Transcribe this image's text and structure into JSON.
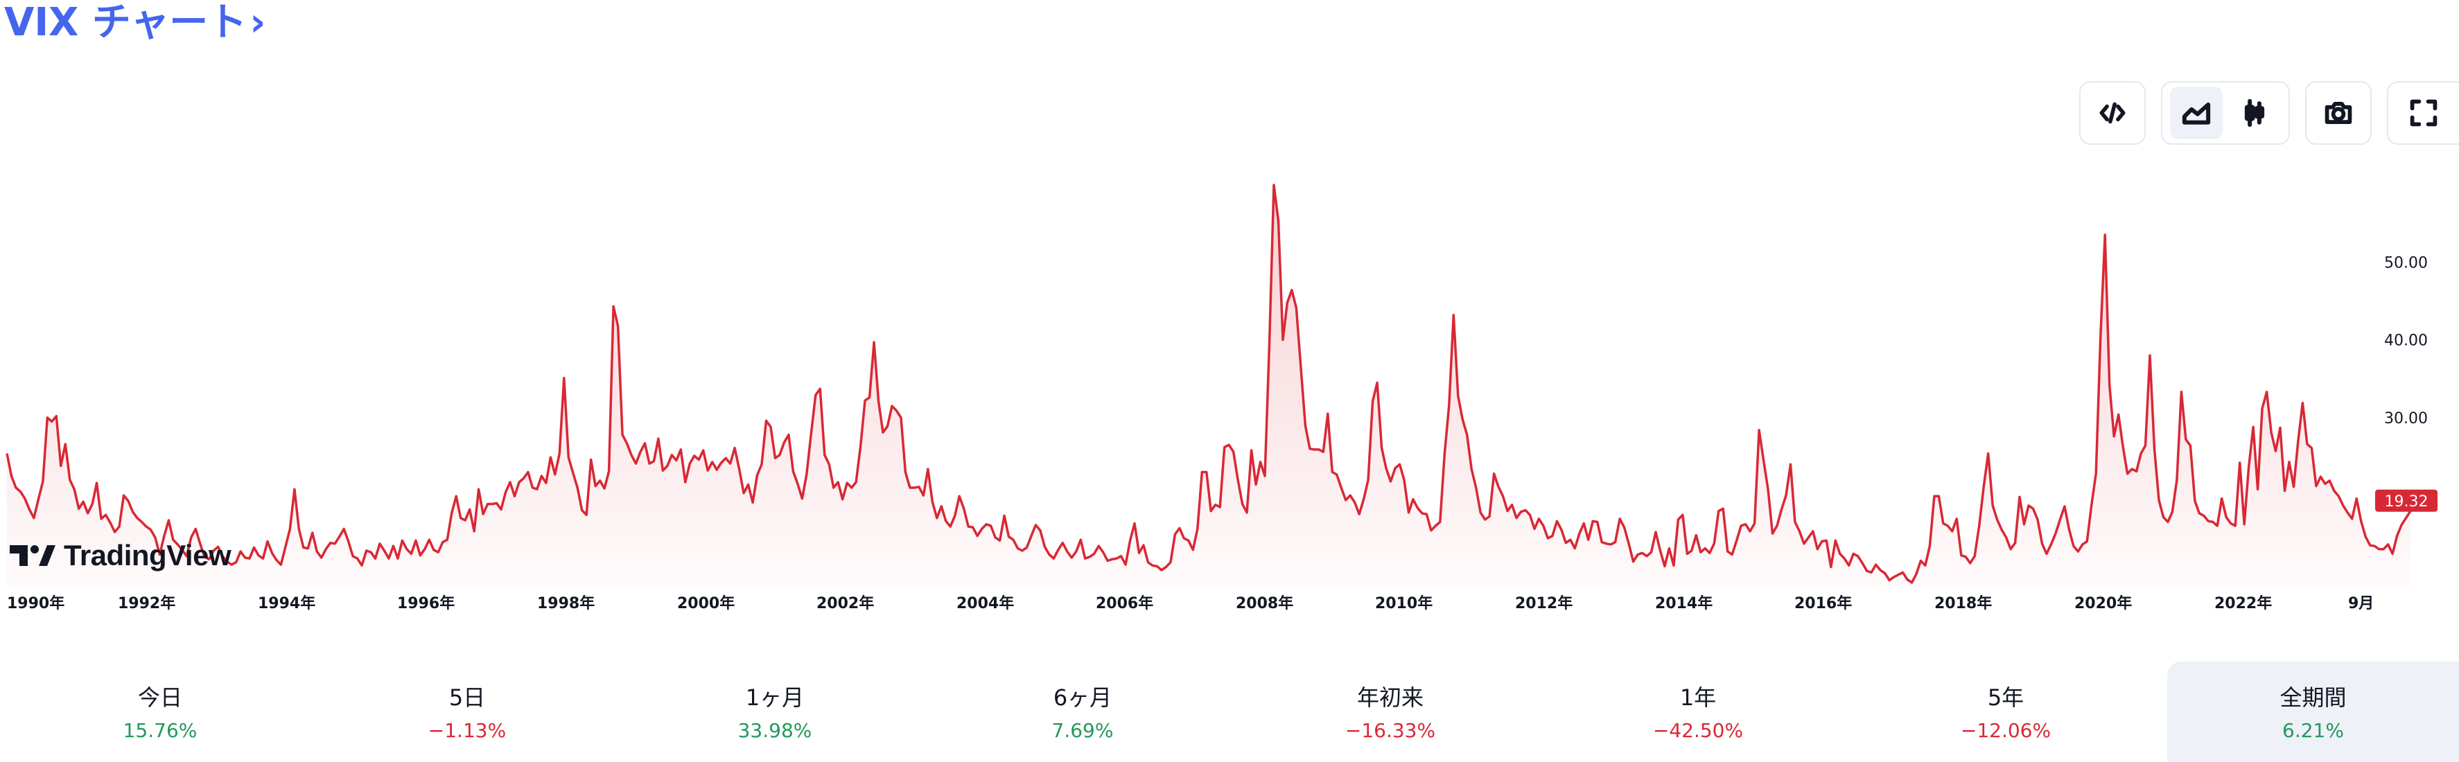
{
  "title": "VIX チャート",
  "title_chevron": "›",
  "toolbar": {
    "embed": "code-icon",
    "area": "area-chart-icon",
    "candle": "candlestick-icon",
    "snapshot": "camera-icon",
    "fullscreen": "fullscreen-icon",
    "active": "area"
  },
  "watermark": "TradingView",
  "colors": {
    "line": "#d92835",
    "positive": "#22995b",
    "negative": "#d92835",
    "link": "#4466ee"
  },
  "chart_data": {
    "type": "area",
    "title": "",
    "xlabel": "",
    "ylabel": "",
    "x_ticks": [
      "1990年",
      "1992年",
      "1994年",
      "1996年",
      "1998年",
      "2000年",
      "2002年",
      "2004年",
      "2006年",
      "2008年",
      "2010年",
      "2012年",
      "2014年",
      "2016年",
      "2018年",
      "2020年",
      "2022年",
      "9月"
    ],
    "y_ticks": [
      "30.00",
      "40.00",
      "50.00"
    ],
    "ylim": [
      5,
      60
    ],
    "x_start": 1990.0,
    "x_step": 0.0833,
    "last_value": "19.32",
    "grid": false,
    "values": [
      25.4,
      22.5,
      21.0,
      20.5,
      19.6,
      18.2,
      17.1,
      19.5,
      21.8,
      30.0,
      29.5,
      30.2,
      23.8,
      26.6,
      22.0,
      20.8,
      18.3,
      19.2,
      17.7,
      18.9,
      21.6,
      17.0,
      17.5,
      16.5,
      15.3,
      16.0,
      20.0,
      19.3,
      17.9,
      17.1,
      16.6,
      16.0,
      15.6,
      14.6,
      12.4,
      14.8,
      16.8,
      14.3,
      13.7,
      13.0,
      12.2,
      14.6,
      15.7,
      13.8,
      12.1,
      11.8,
      12.9,
      13.4,
      12.2,
      11.5,
      11.1,
      11.4,
      12.8,
      12.0,
      11.9,
      13.3,
      12.3,
      11.9,
      14.1,
      12.6,
      11.7,
      11.1,
      13.4,
      15.7,
      20.8,
      15.7,
      13.3,
      13.2,
      15.2,
      12.8,
      12.0,
      13.1,
      13.9,
      13.8,
      14.7,
      15.7,
      14.1,
      12.2,
      11.9,
      11.0,
      12.9,
      12.7,
      11.9,
      13.8,
      12.9,
      11.9,
      13.5,
      11.9,
      14.2,
      13.1,
      12.5,
      14.2,
      12.3,
      13.1,
      14.3,
      13.0,
      12.7,
      14.0,
      14.3,
      17.7,
      19.9,
      17.1,
      16.8,
      18.2,
      15.4,
      20.8,
      17.6,
      18.9,
      18.9,
      19.0,
      18.2,
      20.4,
      21.7,
      19.9,
      21.7,
      22.2,
      23.0,
      21.0,
      20.8,
      22.5,
      21.6,
      24.9,
      22.7,
      25.4,
      35.1,
      24.9,
      22.9,
      21.0,
      18.1,
      17.5,
      24.6,
      21.2,
      21.9,
      20.9,
      23.1,
      44.3,
      41.8,
      27.8,
      26.7,
      25.2,
      24.1,
      25.6,
      26.7,
      24.1,
      24.4,
      27.3,
      23.2,
      23.8,
      25.2,
      24.5,
      25.9,
      21.7,
      24.1,
      25.1,
      24.6,
      25.8,
      23.2,
      24.3,
      23.3,
      24.2,
      24.8,
      24.1,
      26.1,
      23.4,
      20.3,
      21.4,
      19.1,
      22.6,
      24.0,
      29.6,
      28.8,
      24.8,
      25.2,
      26.8,
      27.8,
      23.1,
      21.5,
      19.6,
      22.7,
      27.9,
      32.9,
      33.7,
      25.2,
      24.0,
      21.0,
      21.7,
      19.5,
      21.6,
      21.0,
      21.7,
      26.3,
      32.2,
      32.6,
      39.7,
      32.1,
      28.1,
      28.9,
      31.5,
      30.9,
      30.0,
      23.0,
      21.0,
      21.0,
      21.1,
      20.0,
      23.4,
      19.2,
      17.1,
      18.6,
      16.7,
      16.0,
      17.4,
      19.9,
      18.3,
      16.0,
      15.9,
      14.8,
      15.7,
      16.3,
      16.1,
      14.6,
      14.2,
      17.4,
      14.7,
      14.3,
      13.2,
      12.9,
      13.3,
      14.8,
      16.2,
      15.5,
      13.4,
      12.4,
      11.9,
      13.0,
      13.9,
      12.8,
      12.0,
      12.8,
      14.3,
      11.9,
      12.1,
      12.5,
      13.5,
      12.7,
      11.6,
      11.8,
      11.9,
      12.2,
      11.1,
      14.2,
      16.4,
      12.6,
      13.6,
      11.4,
      11.0,
      10.9,
      10.4,
      10.8,
      11.4,
      15.0,
      15.8,
      14.5,
      14.2,
      13.0,
      15.7,
      23.0,
      23.0,
      18.0,
      18.8,
      18.5,
      26.2,
      26.5,
      25.6,
      22.0,
      18.9,
      17.8,
      25.8,
      21.4,
      24.3,
      22.5,
      39.4,
      59.9,
      55.3,
      40.0,
      44.8,
      46.4,
      44.1,
      36.5,
      29.0,
      26.0,
      25.9,
      25.9,
      25.6,
      30.5,
      23.0,
      22.7,
      21.0,
      19.4,
      20.0,
      19.1,
      17.6,
      19.5,
      22.0,
      32.1,
      34.5,
      26.1,
      23.5,
      21.8,
      23.5,
      24.0,
      22.0,
      17.8,
      19.5,
      18.4,
      17.7,
      17.6,
      15.5,
      16.1,
      16.6,
      25.3,
      31.6,
      43.2,
      32.8,
      29.8,
      27.8,
      23.4,
      21.0,
      17.8,
      16.9,
      17.3,
      22.8,
      21.1,
      19.9,
      18.0,
      18.8,
      17.1,
      17.9,
      18.1,
      17.5,
      15.7,
      17.0,
      16.1,
      14.5,
      14.8,
      16.7,
      15.6,
      13.9,
      14.3,
      13.2,
      15.1,
      16.4,
      14.3,
      16.7,
      16.6,
      14.0,
      13.8,
      13.7,
      14.0,
      17.0,
      15.9,
      13.8,
      11.5,
      12.4,
      12.6,
      12.2,
      12.7,
      15.3,
      12.9,
      10.9,
      13.2,
      11.0,
      16.9,
      17.5,
      12.5,
      12.9,
      14.9,
      12.7,
      13.2,
      12.6,
      13.8,
      18.0,
      18.3,
      12.8,
      12.4,
      14.2,
      16.1,
      16.3,
      15.4,
      16.4,
      28.4,
      24.5,
      20.8,
      15.1,
      16.1,
      18.2,
      20.0,
      24.0,
      16.6,
      15.4,
      13.8,
      14.6,
      15.4,
      13.1,
      14.1,
      14.2,
      10.8,
      14.2,
      12.5,
      11.9,
      11.0,
      12.5,
      12.2,
      11.3,
      10.3,
      10.1,
      11.1,
      10.4,
      10.0,
      9.1,
      9.5,
      9.8,
      10.1,
      9.2,
      8.8,
      9.9,
      11.6,
      11.0,
      13.5,
      19.9,
      19.9,
      16.4,
      16.1,
      15.4,
      17.0,
      12.3,
      12.1,
      11.3,
      12.2,
      16.1,
      21.1,
      25.4,
      18.7,
      16.9,
      15.6,
      14.6,
      13.1,
      13.9,
      19.8,
      16.3,
      18.7,
      18.3,
      16.9,
      13.8,
      12.5,
      13.7,
      15.1,
      16.9,
      18.6,
      15.7,
      13.5,
      12.8,
      13.7,
      14.1,
      18.8,
      22.8,
      40.3,
      53.5,
      34.2,
      27.6,
      30.4,
      26.3,
      22.8,
      23.4,
      23.1,
      25.4,
      26.4,
      38.0,
      26.0,
      19.4,
      17.2,
      16.6,
      17.9,
      22.0,
      33.3,
      27.2,
      26.4,
      19.3,
      17.7,
      17.4,
      16.7,
      16.6,
      16.1,
      19.6,
      17.2,
      16.4,
      16.1,
      24.2,
      16.3,
      23.6,
      28.8,
      20.8,
      31.2,
      33.3,
      28.1,
      25.7,
      28.7,
      20.6,
      24.3,
      21.1,
      27.0,
      31.9,
      26.6,
      26.1,
      21.2,
      22.4,
      21.5,
      21.9,
      20.6,
      19.9,
      18.7,
      17.8,
      17.0,
      19.6,
      16.7,
      14.7,
      13.6,
      13.5,
      13.1,
      13.1,
      13.7,
      12.5,
      14.8,
      16.2,
      17.1,
      18.0
    ]
  },
  "periods": [
    {
      "label": "今日",
      "value": "15.76%",
      "sign": "pos"
    },
    {
      "label": "5日",
      "value": "−1.13%",
      "sign": "neg"
    },
    {
      "label": "1ヶ月",
      "value": "33.98%",
      "sign": "pos"
    },
    {
      "label": "6ヶ月",
      "value": "7.69%",
      "sign": "pos"
    },
    {
      "label": "年初来",
      "value": "−16.33%",
      "sign": "neg"
    },
    {
      "label": "1年",
      "value": "−42.50%",
      "sign": "neg"
    },
    {
      "label": "5年",
      "value": "−12.06%",
      "sign": "neg"
    },
    {
      "label": "全期間",
      "value": "6.21%",
      "sign": "pos"
    }
  ]
}
